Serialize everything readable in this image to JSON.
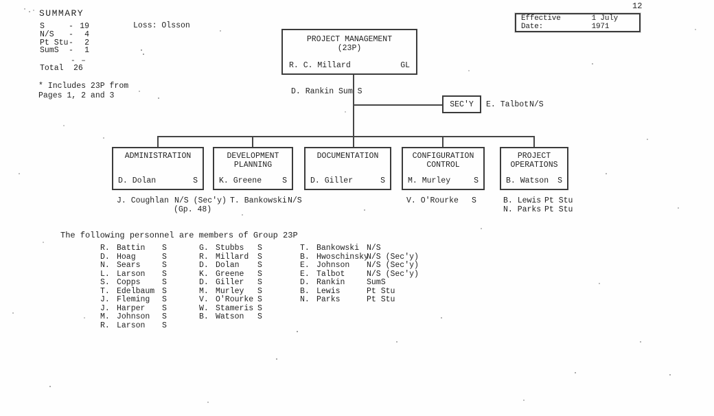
{
  "page": {
    "number": "12",
    "effective_date_label": "Effective Date:",
    "effective_date_value": "1 July 1971"
  },
  "summary": {
    "title": "SUMMARY",
    "dash": "-",
    "rows": [
      {
        "label": "S",
        "value": "19"
      },
      {
        "label": "N/S",
        "value": "4"
      },
      {
        "label": "Pt Stu",
        "value": "2"
      },
      {
        "label": "SumS",
        "value": "1"
      }
    ],
    "rule": "- –",
    "total_label": "Total",
    "total_value": "26",
    "footnote_line1": "* Includes 23P from",
    "footnote_line2": "Pages 1, 2 and 3",
    "loss_label": "Loss: Olsson"
  },
  "org": {
    "root": {
      "title": "PROJECT MANAGEMENT",
      "subtitle": "(23P)",
      "head": "R. C. Millard",
      "grade": "GL"
    },
    "attached_label": "D. Rankin Sum S",
    "secretary": {
      "box_label": "SEC'Y",
      "name": "E. Talbot",
      "role": "N/S"
    },
    "departments": [
      {
        "line1": "ADMINISTRATION",
        "line2": "",
        "head": "D. Dolan",
        "grade": "S"
      },
      {
        "line1": "DEVELOPMENT",
        "line2": "PLANNING",
        "head": "K. Greene",
        "grade": "S"
      },
      {
        "line1": "DOCUMENTATION",
        "line2": "",
        "head": "D. Giller",
        "grade": "S"
      },
      {
        "line1": "CONFIGURATION",
        "line2": "CONTROL",
        "head": "M. Murley",
        "grade": "S"
      },
      {
        "line1": "PROJECT",
        "line2": "OPERATIONS",
        "head": "B. Watson",
        "grade": "S"
      }
    ],
    "staff": {
      "coughlan": {
        "name": "J. Coughlan",
        "role": "N/S (Sec'y)",
        "note": "(Gp. 48)"
      },
      "bankowski": {
        "name": "T. Bankowski",
        "role": "N/S"
      },
      "orourke": {
        "name": "V. O'Rourke",
        "role": "S"
      },
      "lewis": {
        "name": "B. Lewis",
        "role": "Pt Stu"
      },
      "parks": {
        "name": "N. Parks",
        "role": "Pt Stu"
      }
    }
  },
  "members": {
    "intro": "The following personnel are members of Group 23P",
    "columns": [
      [
        [
          "R.",
          "Battin",
          "S"
        ],
        [
          "D.",
          "Hoag",
          "S"
        ],
        [
          "N.",
          "Sears",
          "S"
        ],
        [
          "L.",
          "Larson",
          "S"
        ],
        [
          "S.",
          "Copps",
          "S"
        ],
        [
          "T.",
          "Edelbaum",
          "S"
        ],
        [
          "J.",
          "Fleming",
          "S"
        ],
        [
          "J.",
          "Harper",
          "S"
        ],
        [
          "M.",
          "Johnson",
          "S"
        ],
        [
          "R.",
          "Larson",
          "S"
        ]
      ],
      [
        [
          "G.",
          "Stubbs",
          "S"
        ],
        [
          "R.",
          "Millard",
          "S"
        ],
        [
          "D.",
          "Dolan",
          "S"
        ],
        [
          "K.",
          "Greene",
          "S"
        ],
        [
          "D.",
          "Giller",
          "S"
        ],
        [
          "M.",
          "Murley",
          "S"
        ],
        [
          "V.",
          "O'Rourke",
          "S"
        ],
        [
          "W.",
          "Stameris",
          "S"
        ],
        [
          "B.",
          "Watson",
          "S"
        ]
      ],
      [
        [
          "T.",
          "Bankowski",
          "N/S"
        ],
        [
          "B.",
          "Hwoschinsky",
          "N/S (Sec'y)"
        ],
        [
          "E.",
          "Johnson",
          "N/S (Sec'y)"
        ],
        [
          "E.",
          "Talbot",
          "N/S (Sec'y)"
        ],
        [
          "D.",
          "Rankin",
          "SumS"
        ],
        [
          "B.",
          "Lewis",
          "Pt Stu"
        ],
        [
          "N.",
          "Parks",
          "Pt Stu"
        ]
      ]
    ]
  },
  "colors": {
    "ink": "#222222",
    "paper": "#fefefe",
    "line": "#454545"
  }
}
